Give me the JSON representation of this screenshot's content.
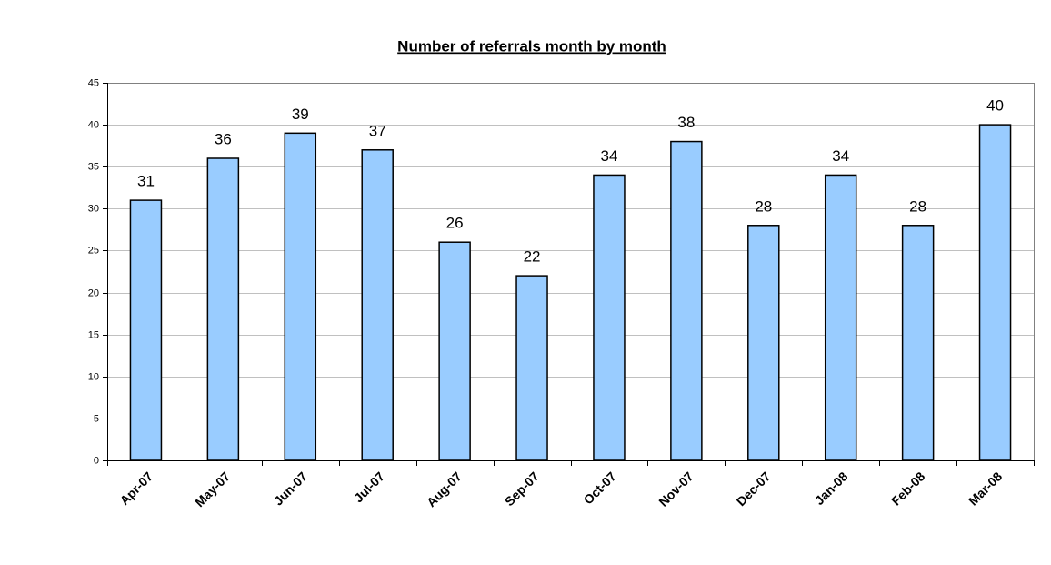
{
  "chart_data": {
    "type": "bar",
    "title": "Number of referrals month by month",
    "categories": [
      "Apr-07",
      "May-07",
      "Jun-07",
      "Jul-07",
      "Aug-07",
      "Sep-07",
      "Oct-07",
      "Nov-07",
      "Dec-07",
      "Jan-08",
      "Feb-08",
      "Mar-08"
    ],
    "values": [
      31,
      36,
      39,
      37,
      26,
      22,
      34,
      38,
      28,
      34,
      28,
      40
    ],
    "color": "#99ccff",
    "ylim": [
      0,
      45
    ],
    "yticks": [
      0,
      5,
      10,
      15,
      20,
      25,
      30,
      35,
      40,
      45
    ],
    "grid": true
  }
}
